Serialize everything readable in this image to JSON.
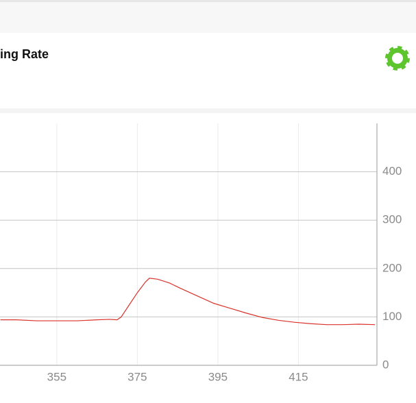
{
  "header": {
    "title": "ing Rate"
  },
  "chart_data": {
    "type": "line",
    "x": [
      341,
      345,
      350,
      355,
      360,
      365,
      368,
      370,
      371,
      373,
      375,
      377,
      378,
      380,
      383,
      386,
      390,
      394,
      398,
      402,
      406,
      410,
      414,
      418,
      422,
      426,
      430,
      434
    ],
    "series": [
      {
        "color": "#d9322a",
        "values": [
          94,
          94,
          92,
          92,
          92,
          94,
          95,
          94,
          100,
          125,
          150,
          172,
          180,
          178,
          170,
          158,
          143,
          128,
          118,
          108,
          99,
          93,
          89,
          86,
          84,
          84,
          85,
          84
        ]
      }
    ],
    "xlim": [
      340.9,
      434.5
    ],
    "xticks": [
      355,
      375,
      395,
      415
    ],
    "ylim": [
      0,
      500
    ],
    "yticks": [
      0,
      100,
      200,
      300,
      400
    ],
    "grid": true
  }
}
